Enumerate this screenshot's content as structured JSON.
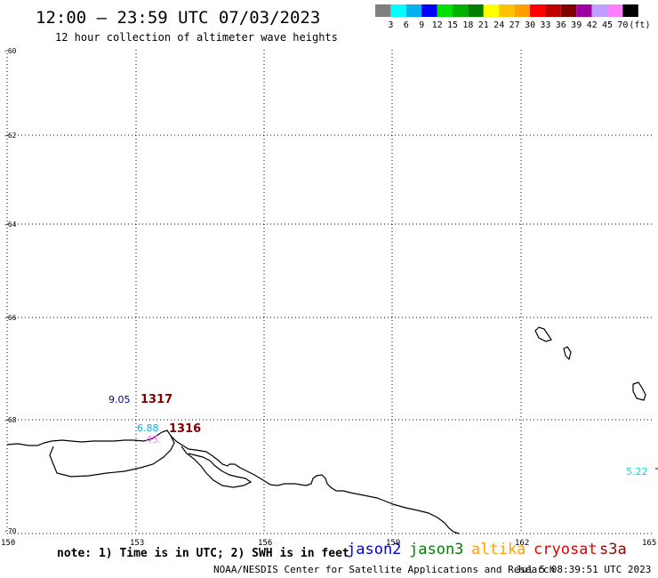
{
  "header": {
    "title": "12:00 – 23:59 UTC 07/03/2023",
    "subtitle": "12 hour collection of altimeter wave heights"
  },
  "legend": {
    "colors": [
      "#808080",
      "#00ffff",
      "#00b0f0",
      "#0000ff",
      "#00e000",
      "#00b000",
      "#008000",
      "#ffff00",
      "#ffc000",
      "#ffa000",
      "#ff0000",
      "#c00000",
      "#800000",
      "#a000a0",
      "#c0a0ff",
      "#ff80ff",
      "#000000"
    ],
    "labels": [
      "3",
      "6",
      "9",
      "12",
      "15",
      "18",
      "21",
      "24",
      "27",
      "30",
      "33",
      "36",
      "39",
      "42",
      "45",
      "70"
    ],
    "unit": "(ft)"
  },
  "map": {
    "lat_labels": [
      "-60",
      "-62",
      "-64",
      "-66",
      "-68",
      "-70"
    ],
    "lon_labels": [
      "150",
      "153",
      "156",
      "159",
      "162",
      "165"
    ],
    "swh_values": [
      {
        "text": "9.05",
        "color": "#0000a0"
      },
      {
        "text": "6.88",
        "color": "#00b0f0"
      },
      {
        "text": "45.",
        "color": "#ff80ff"
      },
      {
        "text": "5.22",
        "color": "#00e0e0"
      }
    ],
    "pass_labels": [
      {
        "text": "1317",
        "color": "#800000"
      },
      {
        "text": "1316",
        "color": "#800000"
      }
    ]
  },
  "footer": {
    "note": "note: 1) Time is in UTC; 2) SWH is in feet",
    "satellites": [
      {
        "name": "jason2",
        "color": "#0000e0"
      },
      {
        "name": "jason3",
        "color": "#008000"
      },
      {
        "name": "altika",
        "color": "#ffa000"
      },
      {
        "name": "cryosat",
        "color": "#e00000"
      },
      {
        "name": "s3a",
        "color": "#a00000"
      }
    ],
    "credit": "NOAA/NESDIS Center for Satellite Applications and Research",
    "timestamp": "Jul  5 08:39:51 UTC 2023"
  }
}
